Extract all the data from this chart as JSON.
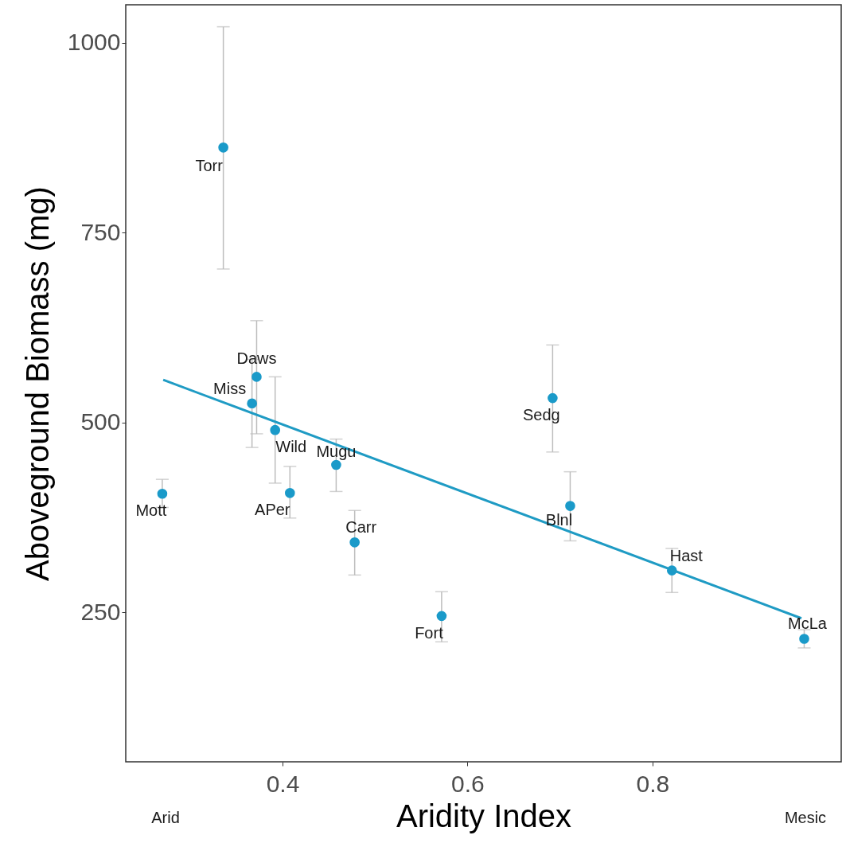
{
  "chart_data": {
    "type": "scatter",
    "xlabel": "Aridity Index",
    "ylabel": "Aboveground Biomass (mg)",
    "xlim": [
      0.2305,
      1.004
    ],
    "ylim": [
      53,
      1050
    ],
    "xticks": [
      0.4,
      0.6,
      0.8
    ],
    "yticks": [
      250,
      500,
      750,
      1000
    ],
    "grid": false,
    "marker": "circle",
    "series": [
      {
        "color": "#1a9ac9",
        "x": [
          0.27,
          0.336,
          0.372,
          0.367,
          0.392,
          0.408,
          0.458,
          0.478,
          0.572,
          0.692,
          0.711,
          0.821,
          0.964
        ],
        "values": [
          406,
          862,
          560,
          525,
          490,
          407,
          444,
          342,
          245,
          532,
          390,
          305,
          215
        ],
        "errors": [
          [
            388,
            425
          ],
          [
            702,
            1021
          ],
          [
            485,
            634
          ],
          [
            467,
            583
          ],
          [
            420,
            560
          ],
          [
            374,
            442
          ],
          [
            409,
            478
          ],
          [
            299,
            384
          ],
          [
            211,
            277
          ],
          [
            461,
            602
          ],
          [
            344,
            435
          ],
          [
            276,
            334
          ],
          [
            203,
            227
          ]
        ]
      },
      {
        "type": "line",
        "marker": "none",
        "color": "#1f9bc4",
        "x": [
          0.271,
          0.961
        ],
        "values": [
          556,
          242
        ]
      }
    ],
    "annotations": [
      {
        "text": "Mott",
        "x": 0.27,
        "y": 406
      },
      {
        "text": "Torr",
        "x": 0.336,
        "y": 862
      },
      {
        "text": "Daws",
        "x": 0.372,
        "y": 560
      },
      {
        "text": "Miss",
        "x": 0.367,
        "y": 525
      },
      {
        "text": "Wild",
        "x": 0.392,
        "y": 490
      },
      {
        "text": "APer",
        "x": 0.408,
        "y": 407
      },
      {
        "text": "Mugu",
        "x": 0.458,
        "y": 444
      },
      {
        "text": "Carr",
        "x": 0.478,
        "y": 342
      },
      {
        "text": "Fort",
        "x": 0.572,
        "y": 245
      },
      {
        "text": "Sedg",
        "x": 0.692,
        "y": 532
      },
      {
        "text": "Blnl",
        "x": 0.711,
        "y": 390
      },
      {
        "text": "Hast",
        "x": 0.821,
        "y": 305
      },
      {
        "text": "McLa",
        "x": 0.964,
        "y": 215
      },
      "Arid",
      "Mesic"
    ]
  }
}
